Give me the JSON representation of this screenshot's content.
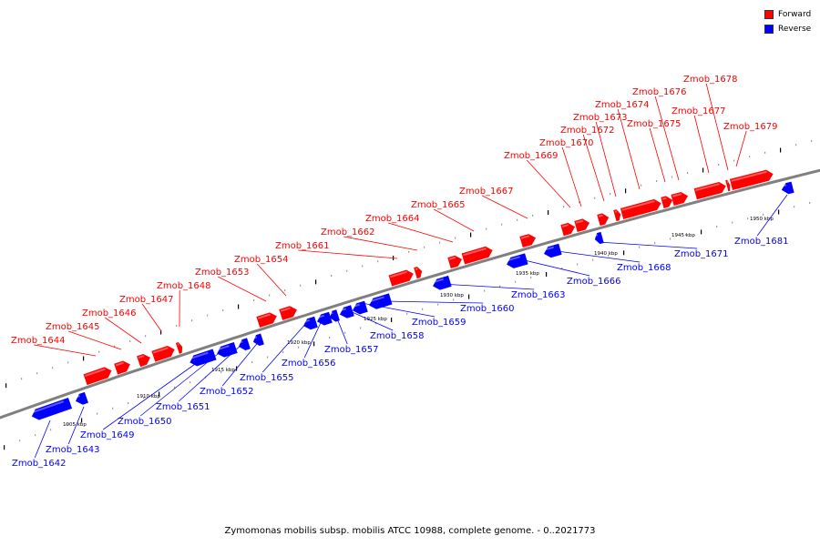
{
  "legend": {
    "forward": {
      "label": "Forward",
      "color": "#ff0000"
    },
    "reverse": {
      "label": "Reverse",
      "color": "#0000ff"
    }
  },
  "caption": "Zymomonas mobilis subsp. mobilis ATCC 10988, complete genome. - 0..2021773",
  "colors": {
    "forward": "#ff0000",
    "reverse": "#0000ff",
    "backbone": "#808080"
  },
  "scale_labels": [
    "1905 kbp",
    "1910 kbp",
    "1915 kbp",
    "1920 kbp",
    "1925 kbp",
    "1930 kbp",
    "1935 kbp",
    "1940 kbp",
    "1945 kbp",
    "1950 kbp"
  ],
  "genes": [
    {
      "name": "Zmob_1642",
      "strand": "reverse"
    },
    {
      "name": "Zmob_1643",
      "strand": "reverse"
    },
    {
      "name": "Zmob_1644",
      "strand": "forward"
    },
    {
      "name": "Zmob_1645",
      "strand": "forward"
    },
    {
      "name": "Zmob_1646",
      "strand": "forward"
    },
    {
      "name": "Zmob_1647",
      "strand": "forward"
    },
    {
      "name": "Zmob_1648",
      "strand": "forward"
    },
    {
      "name": "Zmob_1649",
      "strand": "reverse"
    },
    {
      "name": "Zmob_1650",
      "strand": "reverse"
    },
    {
      "name": "Zmob_1651",
      "strand": "reverse"
    },
    {
      "name": "Zmob_1652",
      "strand": "reverse"
    },
    {
      "name": "Zmob_1653",
      "strand": "forward"
    },
    {
      "name": "Zmob_1654",
      "strand": "forward"
    },
    {
      "name": "Zmob_1655",
      "strand": "reverse"
    },
    {
      "name": "Zmob_1656",
      "strand": "reverse"
    },
    {
      "name": "Zmob_1657",
      "strand": "reverse"
    },
    {
      "name": "Zmob_1658",
      "strand": "reverse"
    },
    {
      "name": "Zmob_1659",
      "strand": "reverse"
    },
    {
      "name": "Zmob_1660",
      "strand": "reverse"
    },
    {
      "name": "Zmob_1661",
      "strand": "forward"
    },
    {
      "name": "Zmob_1662",
      "strand": "forward"
    },
    {
      "name": "Zmob_1663",
      "strand": "reverse"
    },
    {
      "name": "Zmob_1664",
      "strand": "forward"
    },
    {
      "name": "Zmob_1665",
      "strand": "forward"
    },
    {
      "name": "Zmob_1666",
      "strand": "reverse"
    },
    {
      "name": "Zmob_1667",
      "strand": "forward"
    },
    {
      "name": "Zmob_1668",
      "strand": "reverse"
    },
    {
      "name": "Zmob_1669",
      "strand": "forward"
    },
    {
      "name": "Zmob_1670",
      "strand": "forward"
    },
    {
      "name": "Zmob_1671",
      "strand": "reverse"
    },
    {
      "name": "Zmob_1672",
      "strand": "forward"
    },
    {
      "name": "Zmob_1673",
      "strand": "forward"
    },
    {
      "name": "Zmob_1674",
      "strand": "forward"
    },
    {
      "name": "Zmob_1675",
      "strand": "forward"
    },
    {
      "name": "Zmob_1676",
      "strand": "forward"
    },
    {
      "name": "Zmob_1677",
      "strand": "forward"
    },
    {
      "name": "Zmob_1678",
      "strand": "forward"
    },
    {
      "name": "Zmob_1679",
      "strand": "forward"
    },
    {
      "name": "Zmob_1681",
      "strand": "reverse"
    }
  ]
}
